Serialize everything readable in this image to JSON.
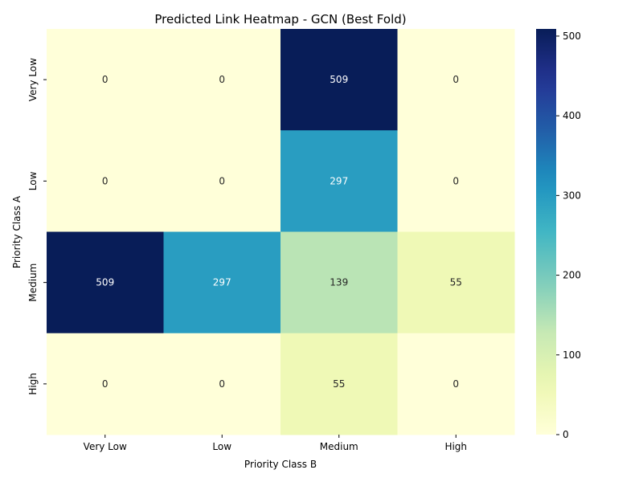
{
  "chart_data": {
    "type": "heatmap",
    "title": "Predicted Link Heatmap - GCN (Best Fold)",
    "xlabel": "Priority Class B",
    "ylabel": "Priority Class A",
    "x_categories": [
      "Very Low",
      "Low",
      "Medium",
      "High"
    ],
    "y_categories": [
      "Very Low",
      "Low",
      "Medium",
      "High"
    ],
    "values": [
      [
        0,
        0,
        509,
        0
      ],
      [
        0,
        0,
        297,
        0
      ],
      [
        509,
        297,
        139,
        55
      ],
      [
        0,
        0,
        55,
        0
      ]
    ],
    "colorbar": {
      "min": 0,
      "max": 509,
      "ticks": [
        0,
        100,
        200,
        300,
        400,
        500
      ],
      "colormap": "YlGnBu"
    }
  }
}
